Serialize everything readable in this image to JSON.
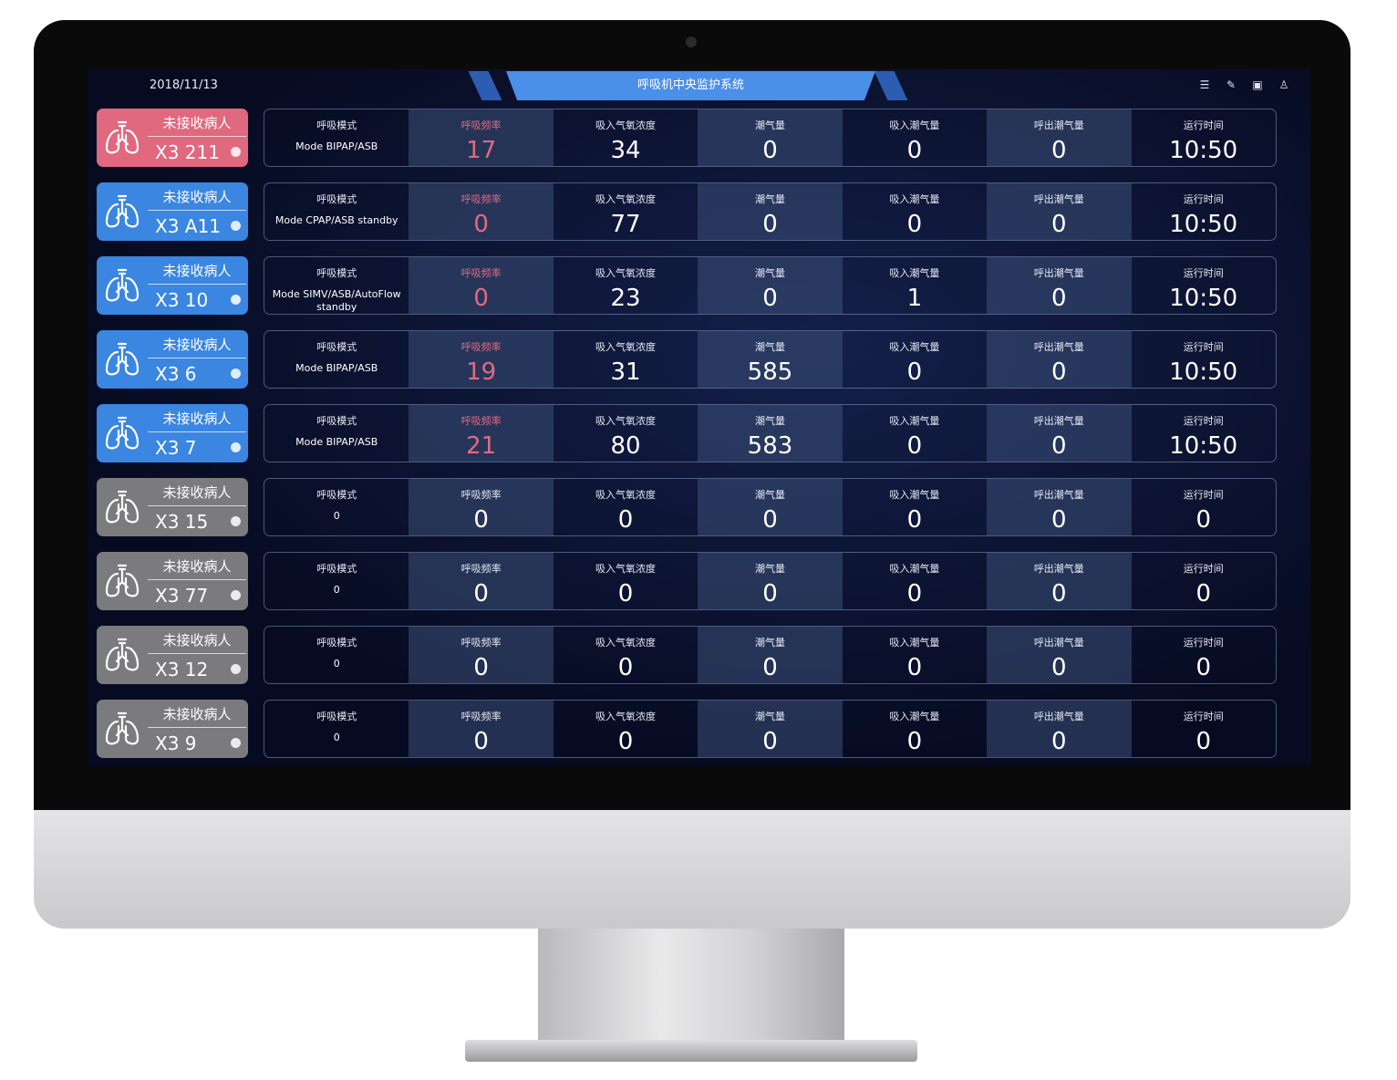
{
  "header": {
    "date": "2018/11/13",
    "title": "呼吸机中央监护系统",
    "icons": [
      "list-icon",
      "edit-icon",
      "layout-icon",
      "user-icon"
    ]
  },
  "colors": {
    "pink": "#e0687f",
    "blue": "#3a86e0",
    "gray": "#7b7b7d",
    "alert": "#e26a83"
  },
  "labels": [
    "呼吸模式",
    "呼吸频率",
    "吸入气氧浓度",
    "潮气量",
    "吸入潮气量",
    "呼出潮气量",
    "运行时间"
  ],
  "rows": [
    {
      "status": "未接收病人",
      "bed": "X3 211",
      "color": "pink",
      "mode": "Mode BIPAP/ASB",
      "values": [
        "17",
        "34",
        "0",
        "0",
        "0",
        "10:50"
      ],
      "alert": true
    },
    {
      "status": "未接收病人",
      "bed": "X3 A11",
      "color": "blue",
      "mode": "Mode CPAP/ASB standby",
      "values": [
        "0",
        "77",
        "0",
        "0",
        "0",
        "10:50"
      ],
      "alert": true
    },
    {
      "status": "未接收病人",
      "bed": "X3 10",
      "color": "blue",
      "mode": "Mode SIMV/ASB/AutoFlow standby",
      "values": [
        "0",
        "23",
        "0",
        "1",
        "0",
        "10:50"
      ],
      "alert": true
    },
    {
      "status": "未接收病人",
      "bed": "X3 6",
      "color": "blue",
      "mode": "Mode BIPAP/ASB",
      "values": [
        "19",
        "31",
        "585",
        "0",
        "0",
        "10:50"
      ],
      "alert": true
    },
    {
      "status": "未接收病人",
      "bed": "X3 7",
      "color": "blue",
      "mode": "Mode BIPAP/ASB",
      "values": [
        "21",
        "80",
        "583",
        "0",
        "0",
        "10:50"
      ],
      "alert": true
    },
    {
      "status": "未接收病人",
      "bed": "X3 15",
      "color": "gray",
      "mode": "0",
      "values": [
        "0",
        "0",
        "0",
        "0",
        "0",
        "0"
      ],
      "alert": false
    },
    {
      "status": "未接收病人",
      "bed": "X3 77",
      "color": "gray",
      "mode": "0",
      "values": [
        "0",
        "0",
        "0",
        "0",
        "0",
        "0"
      ],
      "alert": false
    },
    {
      "status": "未接收病人",
      "bed": "X3 12",
      "color": "gray",
      "mode": "0",
      "values": [
        "0",
        "0",
        "0",
        "0",
        "0",
        "0"
      ],
      "alert": false
    },
    {
      "status": "未接收病人",
      "bed": "X3 9",
      "color": "gray",
      "mode": "0",
      "values": [
        "0",
        "0",
        "0",
        "0",
        "0",
        "0"
      ],
      "alert": false
    }
  ]
}
